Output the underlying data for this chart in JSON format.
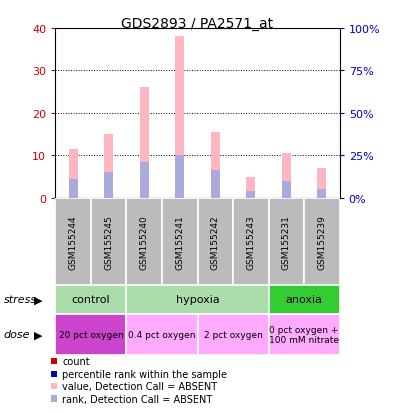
{
  "title": "GDS2893 / PA2571_at",
  "samples": [
    "GSM155244",
    "GSM155245",
    "GSM155240",
    "GSM155241",
    "GSM155242",
    "GSM155243",
    "GSM155231",
    "GSM155239"
  ],
  "pink_heights": [
    11.5,
    15.0,
    26.0,
    38.0,
    15.5,
    5.0,
    10.5,
    7.0
  ],
  "blue_heights": [
    4.5,
    6.0,
    8.5,
    10.0,
    6.5,
    1.5,
    4.0,
    2.0
  ],
  "ylim_left": [
    0,
    40
  ],
  "ylim_right": [
    0,
    100
  ],
  "yticks_left": [
    0,
    10,
    20,
    30,
    40
  ],
  "yticks_right": [
    0,
    25,
    50,
    75,
    100
  ],
  "ytick_labels_right": [
    "0%",
    "25%",
    "50%",
    "75%",
    "100%"
  ],
  "bar_width": 0.25,
  "pink_color": "#FFB6C1",
  "blue_color": "#AAAADD",
  "red_color": "#CC0000",
  "dark_blue_color": "#0000CC",
  "gray_box_color": "#BBBBBB",
  "stress_groups": [
    {
      "label": "control",
      "start": 0,
      "end": 2,
      "color": "#AADDAA"
    },
    {
      "label": "hypoxia",
      "start": 2,
      "end": 6,
      "color": "#AADDAA"
    },
    {
      "label": "anoxia",
      "start": 6,
      "end": 8,
      "color": "#33CC33"
    }
  ],
  "dose_groups": [
    {
      "label": "20 pct oxygen",
      "start": 0,
      "end": 2,
      "color": "#CC44CC"
    },
    {
      "label": "0.4 pct oxygen",
      "start": 2,
      "end": 4,
      "color": "#FFAAFF"
    },
    {
      "label": "2 pct oxygen",
      "start": 4,
      "end": 6,
      "color": "#FFAAFF"
    },
    {
      "label": "0 pct oxygen +\n100 mM nitrate",
      "start": 6,
      "end": 8,
      "color": "#FFAAFF"
    }
  ],
  "label_count": "count",
  "label_pct": "percentile rank within the sample",
  "label_pink": "value, Detection Call = ABSENT",
  "label_blue": "rank, Detection Call = ABSENT",
  "stress_label": "stress",
  "dose_label": "dose",
  "group_dividers": [
    2,
    6
  ],
  "dose_dividers": [
    2,
    4,
    6
  ]
}
